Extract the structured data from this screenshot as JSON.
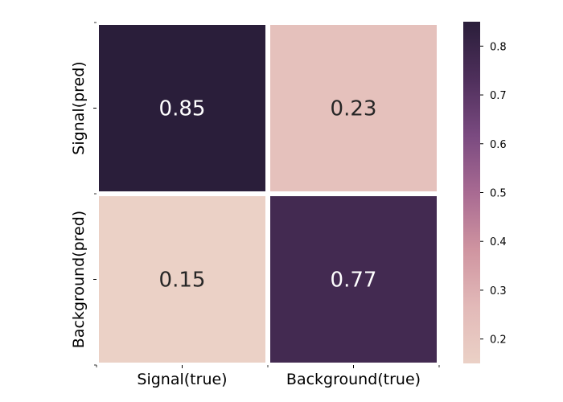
{
  "chart_data": {
    "type": "heatmap",
    "title": "",
    "x_categories": [
      "Signal(true)",
      "Background(true)"
    ],
    "y_categories": [
      "Signal(pred)",
      "Background(pred)"
    ],
    "values": [
      [
        0.85,
        0.23
      ],
      [
        0.15,
        0.77
      ]
    ],
    "value_labels": [
      [
        "0.85",
        "0.23"
      ],
      [
        "0.15",
        "0.77"
      ]
    ],
    "colorbar": {
      "min": 0.15,
      "max": 0.85,
      "ticks": [
        0.2,
        0.3,
        0.4,
        0.5,
        0.6,
        0.7,
        0.8
      ],
      "tick_labels": [
        "0.2",
        "0.3",
        "0.4",
        "0.5",
        "0.6",
        "0.7",
        "0.8"
      ]
    },
    "colormap": [
      "#ebd1c6",
      "#e2b9b8",
      "#cf94a0",
      "#a86a92",
      "#7a4a80",
      "#4e2f5b",
      "#2a1e3a"
    ],
    "text_colors": {
      "light_cell": "#262626",
      "dark_cell": "#ffffff"
    },
    "cell_separator_color": "#ffffff",
    "legend": "colorbar-right"
  }
}
